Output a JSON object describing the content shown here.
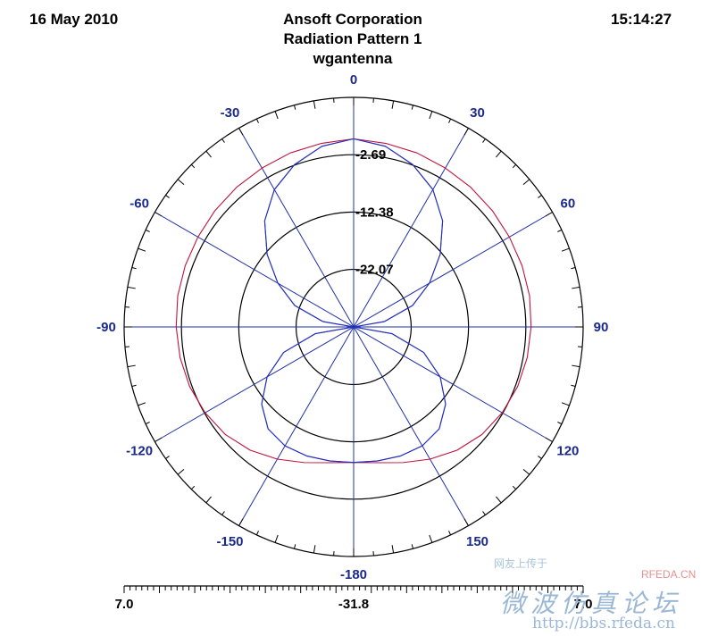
{
  "header": {
    "date": "16 May 2010",
    "company": "Ansoft Corporation",
    "plot_title": "Radiation Pattern 1",
    "design": "wgantenna",
    "time": "15:14:27"
  },
  "chart_data": {
    "type": "polar-line",
    "angle_labels": [
      "0",
      "30",
      "60",
      "90",
      "120",
      "150",
      "-180",
      "-150",
      "-120",
      "-90",
      "-60",
      "-30"
    ],
    "angles_deg": [
      0,
      30,
      60,
      90,
      120,
      150,
      180,
      -150,
      -120,
      -90,
      -60,
      -30
    ],
    "ring_labels": [
      "-2.69",
      "-12.38",
      "-22.07"
    ],
    "ring_values": [
      -2.69,
      -12.38,
      -22.07,
      -31.76
    ],
    "r_min": -31.8,
    "r_max": 7.0,
    "scale_labels": {
      "left": "7.0",
      "center": "-31.8",
      "right": "7.0"
    },
    "colors": {
      "grid": "#1f2fa8",
      "rings": "#000000",
      "labels": "#1a2a8c"
    },
    "series": [
      {
        "color": "#c0143c",
        "points": [
          [
            0,
            0.0
          ],
          [
            10,
            -0.3
          ],
          [
            20,
            -0.5
          ],
          [
            30,
            -0.8
          ],
          [
            40,
            -1.0
          ],
          [
            50,
            -1.2
          ],
          [
            60,
            -1.4
          ],
          [
            70,
            -1.5
          ],
          [
            80,
            -1.6
          ],
          [
            90,
            -1.8
          ],
          [
            100,
            -2.0
          ],
          [
            110,
            -2.3
          ],
          [
            120,
            -2.8
          ],
          [
            130,
            -3.5
          ],
          [
            140,
            -4.6
          ],
          [
            150,
            -6.0
          ],
          [
            160,
            -7.4
          ],
          [
            170,
            -8.5
          ],
          [
            180,
            -8.9
          ]
        ]
      },
      {
        "color": "#2a7a2a",
        "points": [
          [
            0,
            0.0
          ],
          [
            10,
            -0.8
          ],
          [
            20,
            -2.6
          ],
          [
            30,
            -5.0
          ],
          [
            40,
            -8.4
          ],
          [
            50,
            -12.7
          ],
          [
            60,
            -17.0
          ],
          [
            70,
            -21.2
          ],
          [
            80,
            -26.5
          ],
          [
            90,
            -31.8
          ],
          [
            100,
            -25.2
          ],
          [
            110,
            -19.2
          ],
          [
            120,
            -14.9
          ],
          [
            130,
            -11.5
          ],
          [
            140,
            -9.3
          ],
          [
            150,
            -8.6
          ],
          [
            160,
            -8.6
          ],
          [
            170,
            -8.8
          ],
          [
            180,
            -8.9
          ]
        ]
      },
      {
        "color": "#2a2ad0",
        "points": [
          [
            0,
            0.0
          ],
          [
            10,
            -0.8
          ],
          [
            20,
            -2.6
          ],
          [
            30,
            -5.0
          ],
          [
            40,
            -8.4
          ],
          [
            50,
            -12.7
          ],
          [
            60,
            -17.0
          ],
          [
            70,
            -21.2
          ],
          [
            80,
            -26.5
          ],
          [
            90,
            -31.8
          ],
          [
            100,
            -25.2
          ],
          [
            110,
            -19.2
          ],
          [
            120,
            -14.9
          ],
          [
            130,
            -11.5
          ],
          [
            140,
            -9.3
          ],
          [
            150,
            -8.6
          ],
          [
            160,
            -8.6
          ],
          [
            170,
            -8.8
          ],
          [
            180,
            -8.9
          ]
        ]
      }
    ]
  },
  "watermark": {
    "line1": "网友上传于",
    "brand": "RFEDA.CN",
    "cn": "微波仿真论坛",
    "url": "http://bbs.rfeda.cn"
  }
}
